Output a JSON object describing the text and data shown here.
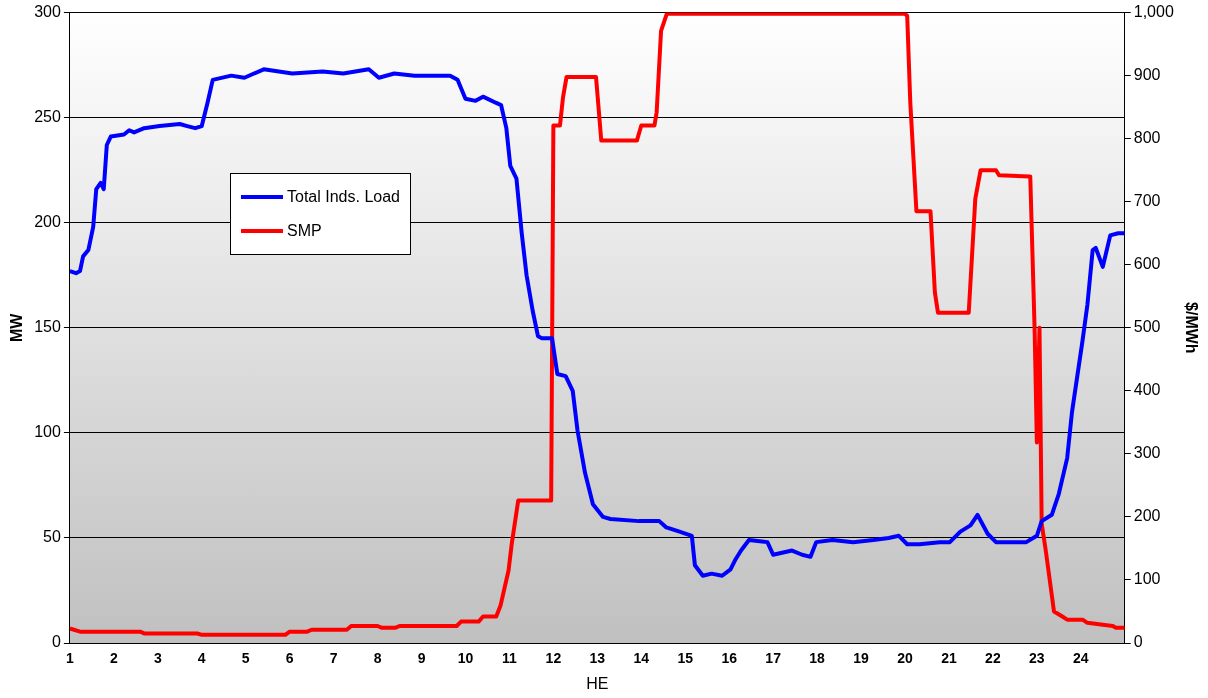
{
  "chart_data": {
    "type": "line",
    "xlabel": "HE",
    "ylabel": "MW",
    "y2label": "$/MWh",
    "xlim": [
      1,
      25
    ],
    "xticks": [
      1,
      2,
      3,
      4,
      5,
      6,
      7,
      8,
      9,
      10,
      11,
      12,
      13,
      14,
      15,
      16,
      17,
      18,
      19,
      20,
      21,
      22,
      23,
      24
    ],
    "ylim": [
      0,
      300
    ],
    "yticks": [
      0,
      50,
      100,
      150,
      200,
      250,
      300
    ],
    "y2lim": [
      0,
      1000
    ],
    "y2ticks": [
      0,
      100,
      200,
      300,
      400,
      500,
      600,
      700,
      800,
      {
        "value": 900,
        "label": "900"
      },
      {
        "value": 1000,
        "label": "1,000"
      }
    ],
    "grid": "y",
    "legend": "top left",
    "series": [
      {
        "name": "Total Inds. Load",
        "color": "#0000ff",
        "x": [
          1,
          1.14,
          1.23,
          1.3,
          1.42,
          1.53,
          1.6,
          1.7,
          1.77,
          1.84,
          1.93,
          2.23,
          2.35,
          2.46,
          2.69,
          3.04,
          3.5,
          3.67,
          3.85,
          4.0,
          4.13,
          4.25,
          4.67,
          4.97,
          5.41,
          6.06,
          6.75,
          7.22,
          7.8,
          8.03,
          8.38,
          8.84,
          9.65,
          9.82,
          10.0,
          10.23,
          10.4,
          10.7,
          10.81,
          10.93,
          11.02,
          11.16,
          11.28,
          11.39,
          11.53,
          11.65,
          11.74,
          11.97,
          12.09,
          12.28,
          12.44,
          12.55,
          12.72,
          12.9,
          13.13,
          13.3,
          13.95,
          14.41,
          14.57,
          14.87,
          15.15,
          15.22,
          15.4,
          15.6,
          15.84,
          16.03,
          16.15,
          16.27,
          16.45,
          16.87,
          17.0,
          17.43,
          17.66,
          17.85,
          17.98,
          18.35,
          18.82,
          19.28,
          19.63,
          19.86,
          20.05,
          20.33,
          20.79,
          21.02,
          21.26,
          21.49,
          21.65,
          21.88,
          22.07,
          22.53,
          22.76,
          23.0,
          23.11,
          23.34,
          23.5,
          23.69,
          23.8,
          24.04,
          24.15,
          24.27,
          24.34,
          24.5,
          24.67,
          24.85,
          25
        ],
        "values": [
          177,
          176,
          177,
          184,
          187,
          198,
          216,
          219,
          216,
          237,
          241,
          242,
          244,
          243,
          245,
          246,
          247,
          246,
          245,
          246,
          257,
          268,
          270,
          269,
          273,
          271,
          272,
          271,
          273,
          269,
          271,
          270,
          270,
          268,
          259,
          258,
          260,
          257,
          256,
          245,
          227,
          221,
          195,
          175,
          158,
          146,
          145,
          145,
          128,
          127,
          120,
          101,
          81,
          66,
          60,
          59,
          58,
          58,
          55,
          53,
          51,
          37,
          32,
          33,
          32,
          35,
          40,
          44,
          49,
          48,
          42,
          44,
          42,
          41,
          48,
          49,
          48,
          49,
          50,
          51,
          47,
          47,
          48,
          48,
          53,
          56,
          61,
          52,
          48,
          48,
          48,
          51,
          58,
          61,
          71,
          88,
          110,
          144,
          161,
          187,
          188,
          179,
          194,
          195,
          195
        ]
      },
      {
        "name": "SMP",
        "color": "#ff0000",
        "axis": "y2",
        "x": [
          1,
          1.23,
          1.6,
          2.6,
          2.7,
          3.9,
          4.0,
          5.9,
          6.0,
          6.4,
          6.5,
          7.3,
          7.4,
          8.0,
          8.1,
          8.4,
          8.5,
          9.8,
          9.9,
          10.3,
          10.4,
          10.7,
          10.8,
          10.98,
          11.05,
          11.2,
          11.95,
          12.0,
          12.15,
          12.22,
          12.3,
          12.97,
          13.09,
          13.9,
          14.0,
          14.3,
          14.35,
          14.45,
          14.58,
          20.0,
          20.05,
          20.12,
          20.26,
          20.58,
          20.68,
          20.75,
          21.45,
          21.6,
          21.72,
          22.07,
          22.14,
          22.85,
          22.95,
          23.0,
          23.06,
          23.11,
          23.2,
          23.39,
          23.58,
          23.69,
          24.04,
          24.15,
          24.5,
          24.73,
          24.8,
          25
        ],
        "values": [
          23,
          18,
          18,
          18,
          15,
          15,
          13,
          13,
          18,
          18,
          21,
          21,
          27,
          27,
          24,
          24,
          27,
          27,
          34,
          34,
          42,
          42,
          60,
          115,
          156,
          226,
          226,
          821,
          821,
          866,
          898,
          898,
          797,
          797,
          821,
          821,
          842,
          971,
          998,
          998,
          995,
          858,
          685,
          685,
          556,
          524,
          524,
          705,
          750,
          750,
          742,
          740,
          495,
          318,
          500,
          189,
          148,
          50,
          42,
          37,
          37,
          32,
          29,
          27,
          24,
          24
        ]
      }
    ]
  }
}
